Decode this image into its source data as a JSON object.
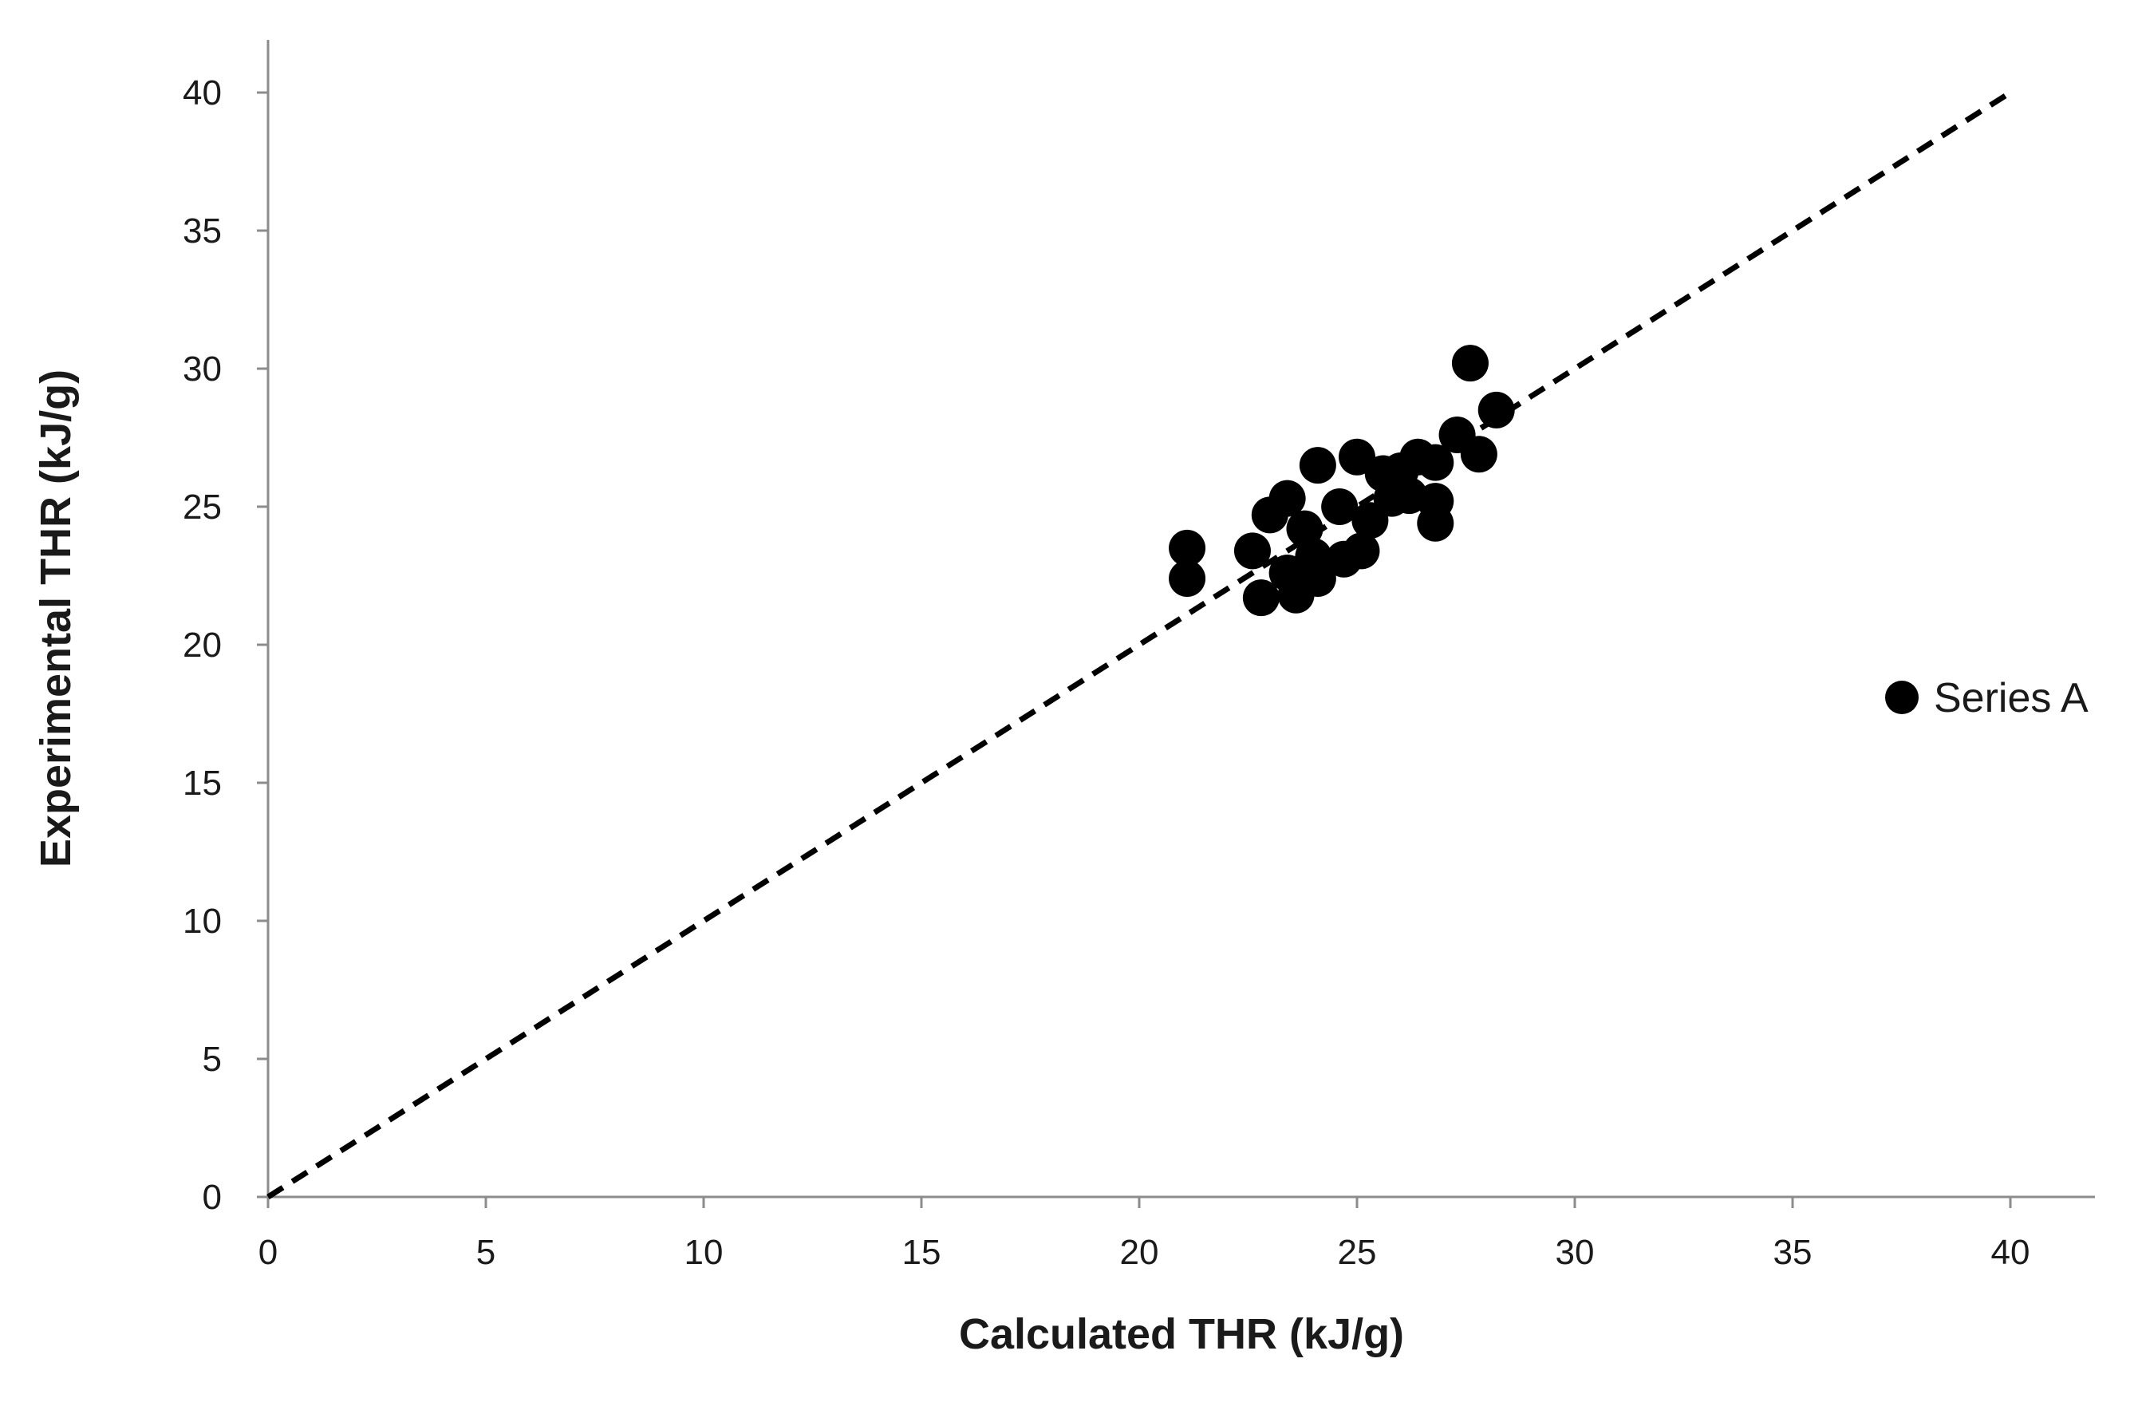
{
  "chart_data": {
    "type": "scatter",
    "xlabel": "Calculated THR (kJ/g)",
    "ylabel": "Experimental THR (kJ/g)",
    "xlim": [
      0,
      42
    ],
    "ylim": [
      0,
      42
    ],
    "x_ticks": [
      0,
      5,
      10,
      15,
      20,
      25,
      30,
      35,
      40
    ],
    "y_ticks": [
      0,
      5,
      10,
      15,
      20,
      25,
      30,
      35,
      40
    ],
    "grid": false,
    "legend_position": "right",
    "reference_line": {
      "style": "dashed",
      "from": [
        0,
        0
      ],
      "to": [
        40,
        40
      ]
    },
    "series": [
      {
        "name": "Series A",
        "color": "#000000",
        "points": [
          [
            21.1,
            23.5
          ],
          [
            21.1,
            22.4
          ],
          [
            22.6,
            23.4
          ],
          [
            22.8,
            21.7
          ],
          [
            23.0,
            24.7
          ],
          [
            23.4,
            25.3
          ],
          [
            23.4,
            22.6
          ],
          [
            23.6,
            21.8
          ],
          [
            23.8,
            24.2
          ],
          [
            24.0,
            23.2
          ],
          [
            24.1,
            22.4
          ],
          [
            24.1,
            26.5
          ],
          [
            24.6,
            25.0
          ],
          [
            24.7,
            23.1
          ],
          [
            25.0,
            26.8
          ],
          [
            25.1,
            23.4
          ],
          [
            25.3,
            24.5
          ],
          [
            25.6,
            26.2
          ],
          [
            25.8,
            25.3
          ],
          [
            26.0,
            26.3
          ],
          [
            26.2,
            25.4
          ],
          [
            26.4,
            26.8
          ],
          [
            26.8,
            26.6
          ],
          [
            26.8,
            25.2
          ],
          [
            26.8,
            24.4
          ],
          [
            27.3,
            27.6
          ],
          [
            27.6,
            30.2
          ],
          [
            27.8,
            26.9
          ],
          [
            28.2,
            28.5
          ]
        ]
      }
    ]
  }
}
